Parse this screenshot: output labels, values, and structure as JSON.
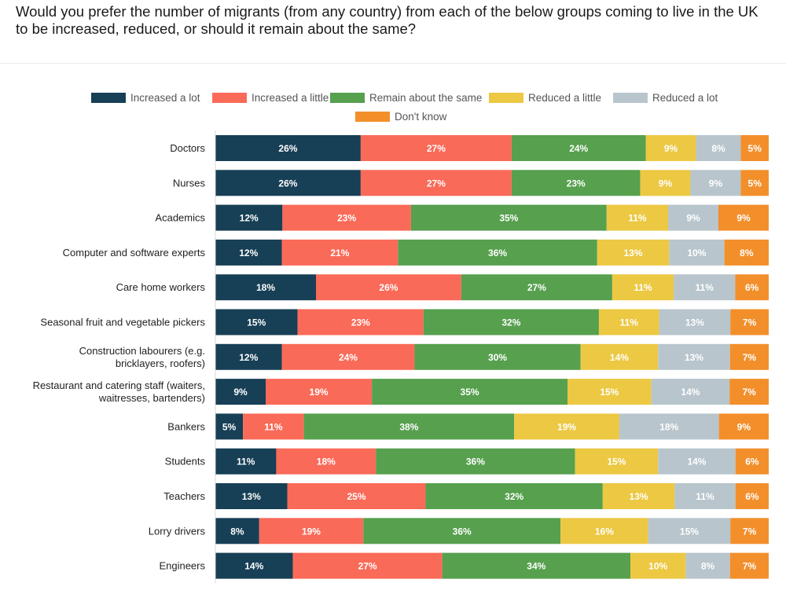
{
  "title": "Would you prefer the number of migrants (from any country) from each of the below groups coming to live in the UK to be increased, reduced, or should it remain about the same?",
  "chart_data": {
    "type": "bar",
    "orientation": "horizontal",
    "stacked": true,
    "normalized": true,
    "legend": "top",
    "categories": [
      [
        "Doctors"
      ],
      [
        "Nurses"
      ],
      [
        "Academics"
      ],
      [
        "Computer and software experts"
      ],
      [
        "Care home workers"
      ],
      [
        "Seasonal fruit and vegetable pickers"
      ],
      [
        "Construction labourers (e.g.",
        "bricklayers, roofers)"
      ],
      [
        "Restaurant and catering staff (waiters,",
        "waitresses, bartenders)"
      ],
      [
        "Bankers"
      ],
      [
        "Students"
      ],
      [
        "Teachers"
      ],
      [
        "Lorry drivers"
      ],
      [
        "Engineers"
      ]
    ],
    "series": [
      {
        "name": "Increased a lot",
        "color": "#173f55",
        "values": [
          26,
          26,
          12,
          12,
          18,
          15,
          12,
          9,
          5,
          11,
          13,
          8,
          14
        ]
      },
      {
        "name": "Increased a little",
        "color": "#fa6a58",
        "values": [
          27,
          27,
          23,
          21,
          26,
          23,
          24,
          19,
          11,
          18,
          25,
          19,
          27
        ]
      },
      {
        "name": "Remain about the same",
        "color": "#56a04e",
        "values": [
          24,
          23,
          35,
          36,
          27,
          32,
          30,
          35,
          38,
          36,
          32,
          36,
          34
        ]
      },
      {
        "name": "Reduced a little",
        "color": "#ecc843",
        "values": [
          9,
          9,
          11,
          13,
          11,
          11,
          14,
          15,
          19,
          15,
          13,
          16,
          10
        ]
      },
      {
        "name": "Reduced a lot",
        "color": "#b8c5cc",
        "values": [
          8,
          9,
          9,
          10,
          11,
          13,
          13,
          14,
          18,
          14,
          11,
          15,
          8
        ]
      },
      {
        "name": "Don't know",
        "color": "#f28f2b",
        "values": [
          5,
          5,
          9,
          8,
          6,
          7,
          7,
          7,
          9,
          6,
          6,
          7,
          7
        ]
      }
    ]
  }
}
